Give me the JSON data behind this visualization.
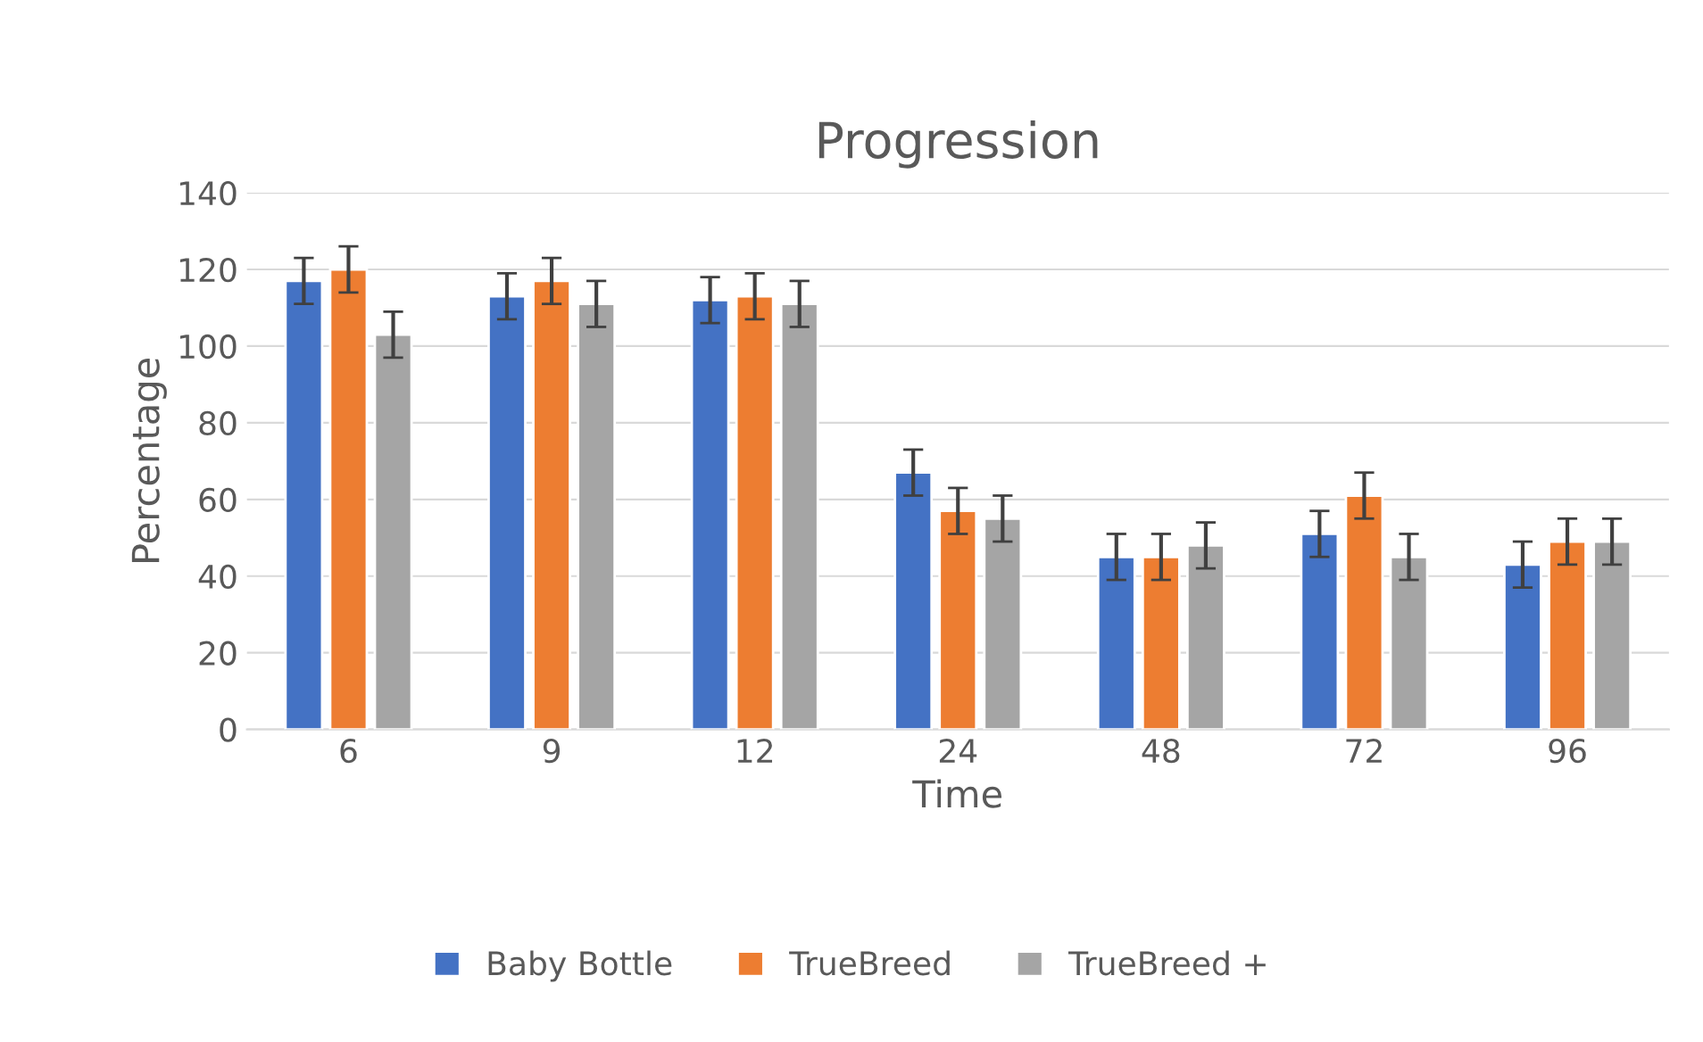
{
  "chart_data": {
    "type": "bar",
    "title": "Progression",
    "xlabel": "Time",
    "ylabel": "Percentage",
    "categories": [
      "6",
      "9",
      "12",
      "24",
      "48",
      "72",
      "96"
    ],
    "series": [
      {
        "name": "Baby Bottle",
        "color": "#4472c4",
        "values": [
          117,
          113,
          112,
          67,
          45,
          51,
          43
        ],
        "errors": [
          6,
          6,
          6,
          6,
          6,
          6,
          6
        ]
      },
      {
        "name": "TrueBreed",
        "color": "#ed7d31",
        "values": [
          120,
          117,
          113,
          57,
          45,
          61,
          49
        ],
        "errors": [
          6,
          6,
          6,
          6,
          6,
          6,
          6
        ]
      },
      {
        "name": "TrueBreed +",
        "color": "#a5a5a5",
        "values": [
          103,
          111,
          111,
          55,
          48,
          45,
          49
        ],
        "errors": [
          6,
          6,
          6,
          6,
          6,
          6,
          6
        ]
      }
    ],
    "ylim": [
      0,
      140
    ],
    "yticks": [
      0,
      20,
      40,
      60,
      80,
      100,
      120,
      140
    ],
    "grid": "y",
    "legend": "bottom"
  }
}
